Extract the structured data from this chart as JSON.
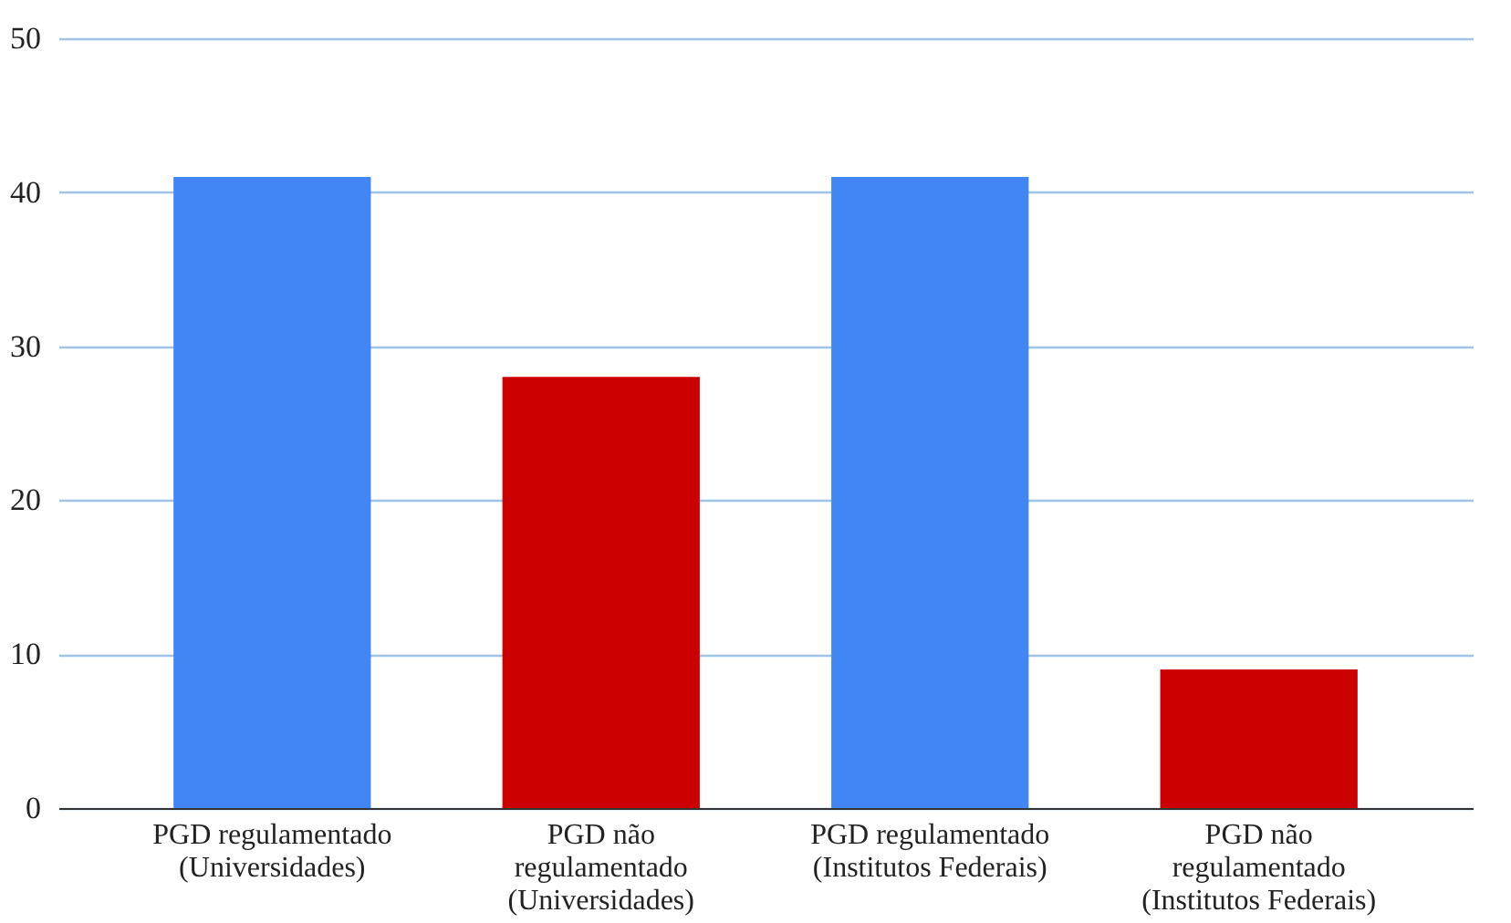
{
  "chart_data": {
    "type": "bar",
    "categories": [
      "PGD regulamentado\n(Universidades)",
      "PGD não\nregulamentado\n(Universidades)",
      "PGD regulamentado\n(Institutos Federais)",
      "PGD não\nregulamentado\n(Institutos Federais)"
    ],
    "values": [
      41,
      28,
      41,
      9
    ],
    "colors": [
      "#4285f4",
      "#cc0000",
      "#4285f4",
      "#cc0000"
    ],
    "ylim": [
      0,
      50
    ],
    "yticks": [
      0,
      10,
      20,
      30,
      40,
      50
    ],
    "grid": "y"
  }
}
